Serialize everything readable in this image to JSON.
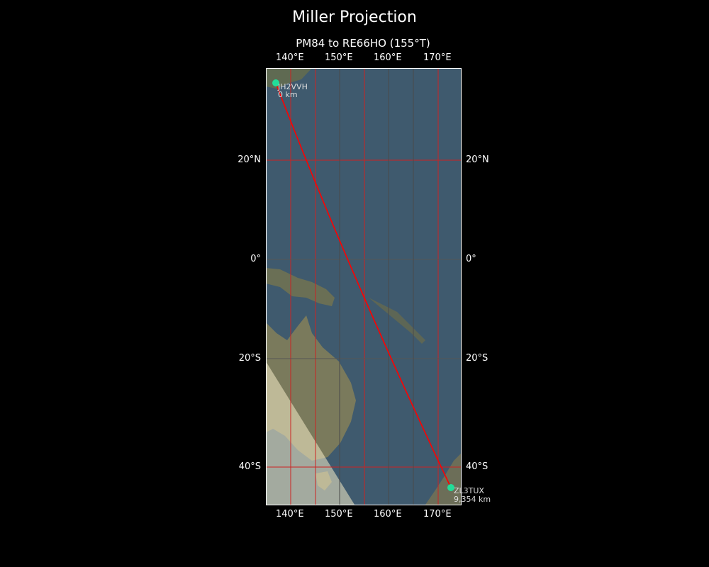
{
  "figure": {
    "title": "Miller Projection",
    "subtitle": "PM84 to RE66HO (155°T)"
  },
  "map": {
    "projection": "Miller",
    "extent": {
      "lon": [
        135,
        175
      ],
      "lat": [
        -47,
        37
      ]
    },
    "lon_ticks": [
      "140°E",
      "150°E",
      "160°E",
      "170°E"
    ],
    "lat_ticks": [
      "20°N",
      "0°",
      "20°S",
      "40°S"
    ],
    "grid_color": "#cc2222",
    "route_color": "#ff0000",
    "marker_color": "#22dd99",
    "path": {
      "bearing": "155°T",
      "start": {
        "call": "JH2VVH",
        "label": "0 km"
      },
      "end": {
        "call": "ZL3TUX",
        "label": "9,354 km"
      }
    }
  }
}
